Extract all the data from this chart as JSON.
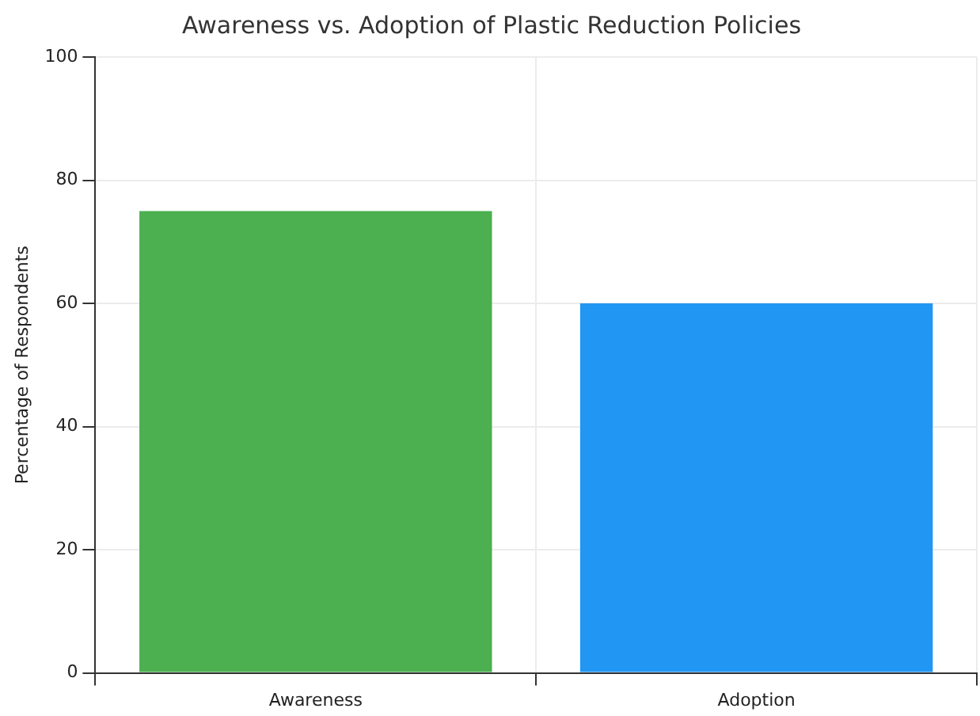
{
  "chart_data": {
    "type": "bar",
    "title": "Awareness vs. Adoption of Plastic Reduction Policies",
    "ylabel": "Percentage of Respondents",
    "categories": [
      "Awareness",
      "Adoption"
    ],
    "values": [
      75,
      60
    ],
    "colors": [
      "#4caf50",
      "#2196f3"
    ],
    "ylim": [
      0,
      100
    ],
    "yticks": [
      0,
      20,
      40,
      60,
      80,
      100
    ],
    "grid": true
  }
}
